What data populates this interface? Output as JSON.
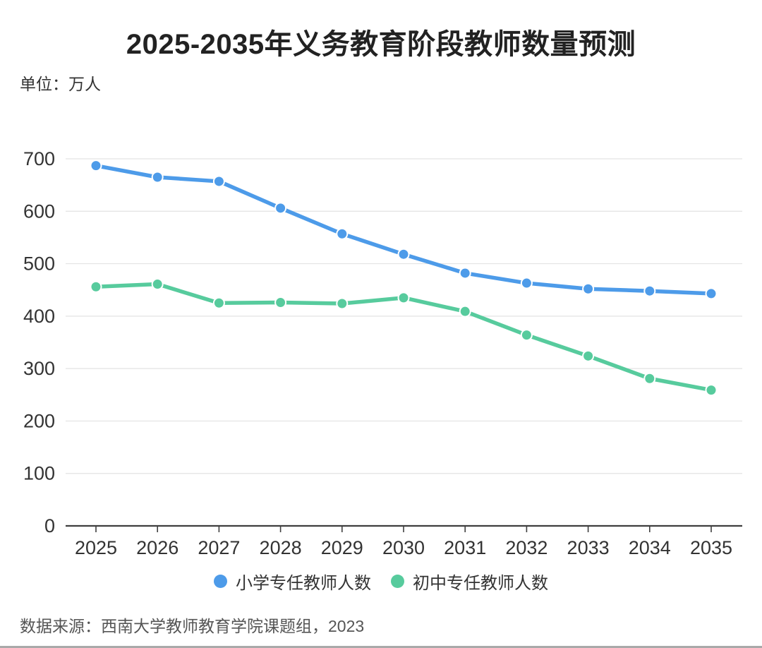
{
  "style": {
    "primary_color": "#4d9be9",
    "junior_color": "#57cb9d",
    "title_color": "#222222",
    "label_color": "#333333",
    "source_color": "#555555",
    "grid_color": "#e3e3e3",
    "axis_color": "#3f3f3f",
    "background_color": "#ffffff",
    "page_border_color": "#a9a9a9"
  },
  "chart_data": {
    "type": "line",
    "title": "2025-2035年义务教育阶段教师数量预测",
    "unit_label": "单位：万人",
    "source": "数据来源：西南大学教师教育学院课题组，2023",
    "categories": [
      "2025",
      "2026",
      "2027",
      "2028",
      "2029",
      "2030",
      "2031",
      "2032",
      "2033",
      "2034",
      "2035"
    ],
    "series": [
      {
        "name": "小学专任教师人数",
        "color": "#4d9be9",
        "values": [
          687,
          665,
          657,
          606,
          557,
          518,
          482,
          463,
          452,
          448,
          443
        ]
      },
      {
        "name": "初中专任教师人数",
        "color": "#57cb9d",
        "values": [
          456,
          461,
          425,
          426,
          424,
          435,
          409,
          364,
          324,
          281,
          259
        ]
      }
    ],
    "ylim": [
      0,
      700
    ],
    "yticks": [
      0,
      100,
      200,
      300,
      400,
      500,
      600,
      700
    ],
    "grid": true,
    "legend_position": "bottom"
  }
}
